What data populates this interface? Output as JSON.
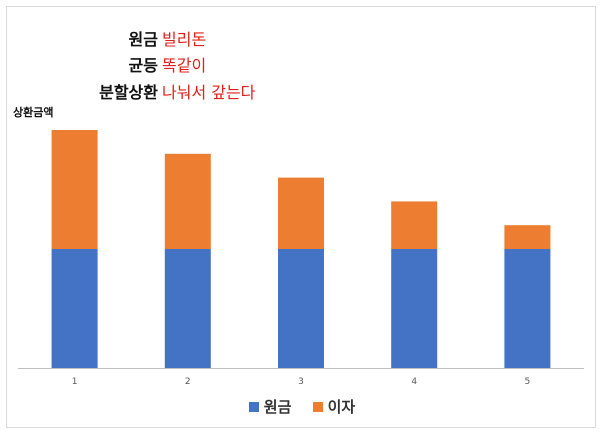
{
  "annotations": [
    {
      "key": "원금",
      "value": "빌리돈"
    },
    {
      "key": "균등",
      "value": "똑같이"
    },
    {
      "key": "분할상환",
      "value": "나눠서 갚는다"
    }
  ],
  "chart_data": {
    "type": "bar",
    "stacked": true,
    "ylabel": "상환금액",
    "xlabel": "",
    "categories": [
      "1",
      "2",
      "3",
      "4",
      "5"
    ],
    "ylim": [
      0,
      100
    ],
    "series": [
      {
        "name": "원금",
        "color": "#4472c4",
        "values": [
          50,
          50,
          50,
          50,
          50
        ]
      },
      {
        "name": "이자",
        "color": "#ed7d31",
        "values": [
          50,
          40,
          30,
          20,
          10
        ]
      }
    ],
    "legend": "bottom",
    "grid": false
  }
}
